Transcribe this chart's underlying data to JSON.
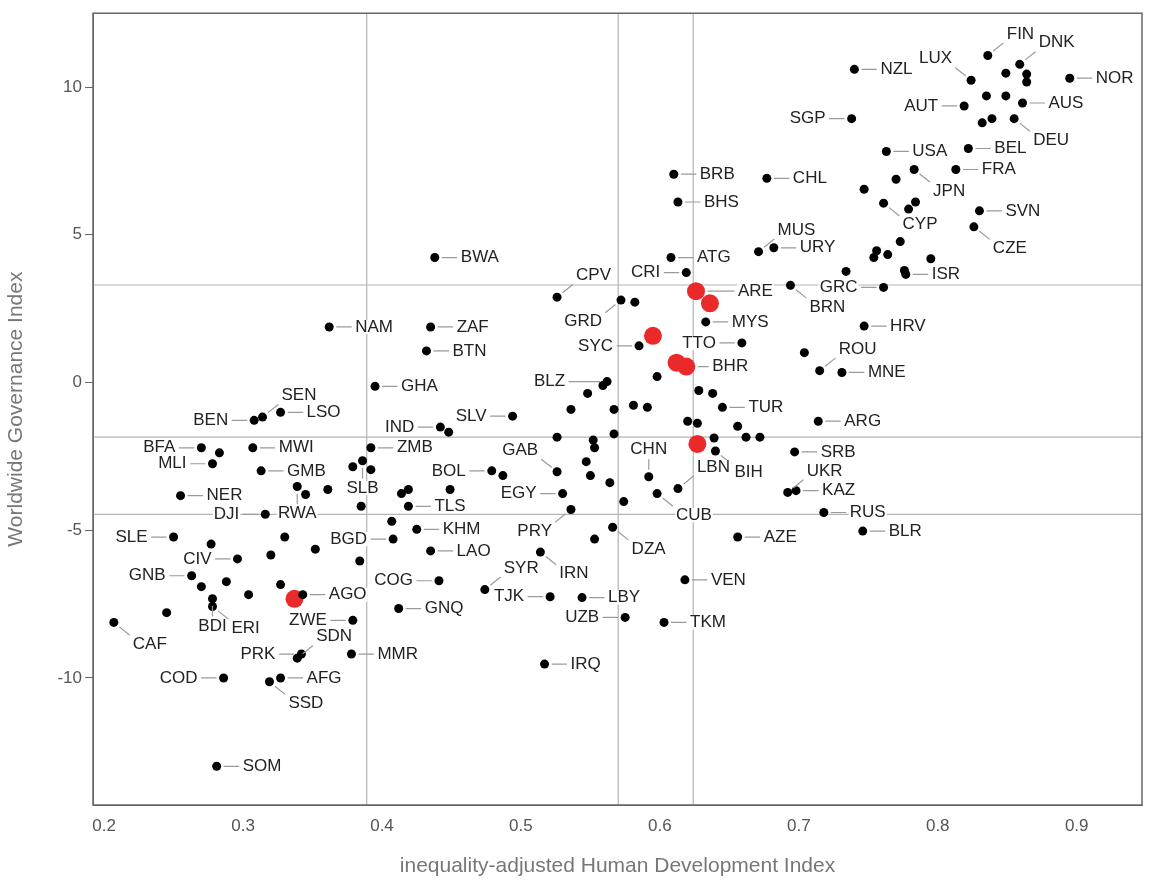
{
  "chart_data": {
    "type": "scatter",
    "xlabel": "inequality-adjusted Human Development Index",
    "ylabel": "Worldwide Governance Index",
    "xlim": [
      0.192,
      0.947
    ],
    "ylim": [
      -14.3,
      12.5
    ],
    "xticks": [
      0.2,
      0.3,
      0.4,
      0.5,
      0.6,
      0.7,
      0.8,
      0.9
    ],
    "yticks": [
      -10,
      -5,
      0,
      5,
      10
    ],
    "grid": false,
    "legend": false,
    "marker": "circle",
    "ref_lines": [
      {
        "axis": "x",
        "value": 0.389,
        "color": "#b4b4b4"
      },
      {
        "axis": "x",
        "value": 0.57,
        "color": "#b4b4b4"
      },
      {
        "axis": "x",
        "value": 0.624,
        "color": "#b4b4b4"
      },
      {
        "axis": "y",
        "value": 3.3,
        "color": "#b4b4b4"
      },
      {
        "axis": "y",
        "value": -1.85,
        "color": "#b4b4b4"
      },
      {
        "axis": "y",
        "value": -4.46,
        "color": "#b4b4b4"
      }
    ],
    "series": [
      {
        "color": "#000000",
        "x": [
          0.74,
          0.738,
          0.836,
          0.859,
          0.849,
          0.864,
          0.864,
          0.895,
          0.824,
          0.835,
          0.849,
          0.861,
          0.819,
          0.832,
          0.839,
          0.855,
          0.822,
          0.813,
          0.783,
          0.763,
          0.77,
          0.747,
          0.761,
          0.779,
          0.784,
          0.83,
          0.826,
          0.773,
          0.756,
          0.754,
          0.764,
          0.795,
          0.776,
          0.777,
          0.734,
          0.761,
          0.694,
          0.747,
          0.704,
          0.715,
          0.731,
          0.714,
          0.677,
          0.682,
          0.671,
          0.61,
          0.613,
          0.608,
          0.619,
          0.633,
          0.659,
          0.585,
          0.598,
          0.526,
          0.572,
          0.582,
          0.562,
          0.559,
          0.548,
          0.536,
          0.567,
          0.581,
          0.591,
          0.494,
          0.628,
          0.638,
          0.645,
          0.62,
          0.627,
          0.656,
          0.662,
          0.672,
          0.639,
          0.64,
          0.526,
          0.567,
          0.552,
          0.553,
          0.697,
          0.698,
          0.692,
          0.718,
          0.746,
          0.656,
          0.526,
          0.479,
          0.487,
          0.547,
          0.55,
          0.564,
          0.574,
          0.592,
          0.598,
          0.613,
          0.53,
          0.536,
          0.566,
          0.553,
          0.514,
          0.618,
          0.474,
          0.521,
          0.544,
          0.575,
          0.603,
          0.517,
          0.438,
          0.362,
          0.435,
          0.432,
          0.395,
          0.327,
          0.308,
          0.314,
          0.442,
          0.448,
          0.307,
          0.27,
          0.283,
          0.392,
          0.278,
          0.313,
          0.379,
          0.386,
          0.392,
          0.255,
          0.339,
          0.345,
          0.361,
          0.385,
          0.414,
          0.419,
          0.449,
          0.419,
          0.316,
          0.407,
          0.425,
          0.408,
          0.435,
          0.25,
          0.277,
          0.33,
          0.296,
          0.32,
          0.352,
          0.384,
          0.263,
          0.27,
          0.288,
          0.327,
          0.304,
          0.343,
          0.278,
          0.278,
          0.245,
          0.207,
          0.379,
          0.441,
          0.412,
          0.339,
          0.342,
          0.378,
          0.286,
          0.319,
          0.327,
          0.281
        ],
        "values": [
          10.6,
          8.93,
          11.07,
          10.77,
          10.47,
          10.44,
          10.17,
          10.3,
          10.23,
          9.7,
          9.7,
          9.46,
          9.36,
          8.79,
          8.93,
          8.93,
          7.92,
          7.21,
          7.21,
          7.82,
          6.88,
          6.54,
          6.07,
          5.87,
          6.11,
          5.81,
          5.27,
          4.77,
          4.46,
          4.23,
          4.33,
          4.19,
          3.79,
          3.66,
          3.76,
          3.22,
          3.29,
          1.91,
          1.01,
          0.4,
          0.34,
          -1.31,
          6.91,
          4.56,
          4.43,
          7.05,
          6.11,
          4.23,
          3.72,
          2.05,
          1.34,
          1.24,
          0.2,
          2.89,
          2.79,
          2.72,
          0.03,
          -0.1,
          -0.37,
          -0.91,
          -0.91,
          -0.77,
          -0.84,
          -1.14,
          -0.27,
          -0.37,
          -0.84,
          -1.31,
          -1.38,
          -1.48,
          -1.85,
          -1.85,
          -1.88,
          -2.32,
          -1.85,
          -1.74,
          -1.95,
          -2.21,
          -2.35,
          -3.66,
          -3.72,
          -4.4,
          -5.03,
          -5.23,
          -3.02,
          -2.99,
          -3.15,
          -2.68,
          -3.15,
          -3.39,
          -4.03,
          -3.19,
          -3.76,
          -3.59,
          -3.76,
          -4.3,
          -4.9,
          -5.3,
          -5.74,
          -6.68,
          -7.01,
          -7.25,
          -7.28,
          -7.95,
          -8.12,
          -9.53,
          4.23,
          1.88,
          1.88,
          1.07,
          -0.13,
          -1.01,
          -1.28,
          -1.17,
          -1.51,
          -1.68,
          -2.21,
          -2.21,
          -2.38,
          -2.21,
          -2.75,
          -2.99,
          -2.85,
          -2.65,
          -2.95,
          -3.83,
          -3.52,
          -3.79,
          -3.62,
          -4.19,
          -3.76,
          -3.62,
          -3.62,
          -4.19,
          -4.46,
          -4.7,
          -4.97,
          -5.3,
          -5.7,
          -5.23,
          -5.47,
          -5.23,
          -5.97,
          -5.84,
          -5.64,
          -6.04,
          -6.54,
          -6.91,
          -6.74,
          -6.84,
          -7.18,
          -7.18,
          -7.32,
          -7.58,
          -7.79,
          -8.12,
          -8.05,
          -6.71,
          -7.65,
          -9.33,
          -9.19,
          -9.19,
          -10.0,
          -10.13,
          -10.0,
          -12.99
        ]
      },
      {
        "color": "#ea2a2a",
        "x": [
          0.626,
          0.636,
          0.595,
          0.612,
          0.619,
          0.627,
          0.337
        ],
        "values": [
          3.09,
          2.68,
          1.58,
          0.67,
          0.54,
          -2.08,
          -7.32
        ]
      }
    ],
    "annotations": [
      {
        "text": "FIN",
        "x": 0.836,
        "y": 11.07
      },
      {
        "text": "DNK",
        "x": 0.859,
        "y": 10.77
      },
      {
        "text": "NZL",
        "x": 0.74,
        "y": 10.6
      },
      {
        "text": "LUX",
        "x": 0.824,
        "y": 10.23
      },
      {
        "text": "NOR",
        "x": 0.895,
        "y": 10.3
      },
      {
        "text": "AUT",
        "x": 0.819,
        "y": 9.36
      },
      {
        "text": "AUS",
        "x": 0.861,
        "y": 9.46
      },
      {
        "text": "SGP",
        "x": 0.738,
        "y": 8.93
      },
      {
        "text": "DEU",
        "x": 0.855,
        "y": 8.93
      },
      {
        "text": "JPN",
        "x": 0.783,
        "y": 7.21
      },
      {
        "text": "BRB",
        "x": 0.61,
        "y": 7.05
      },
      {
        "text": "CHL",
        "x": 0.677,
        "y": 6.91
      },
      {
        "text": "BEL",
        "x": 0.822,
        "y": 7.92
      },
      {
        "text": "USA",
        "x": 0.763,
        "y": 7.82
      },
      {
        "text": "FRA",
        "x": 0.813,
        "y": 7.21
      },
      {
        "text": "BHS",
        "x": 0.613,
        "y": 6.11
      },
      {
        "text": "CYP",
        "x": 0.761,
        "y": 6.07
      },
      {
        "text": "SVN",
        "x": 0.83,
        "y": 5.81
      },
      {
        "text": "BWA",
        "x": 0.438,
        "y": 4.23
      },
      {
        "text": "ATG",
        "x": 0.608,
        "y": 4.23
      },
      {
        "text": "URY",
        "x": 0.682,
        "y": 4.56
      },
      {
        "text": "MUS",
        "x": 0.671,
        "y": 4.43
      },
      {
        "text": "CZE",
        "x": 0.826,
        "y": 5.27
      },
      {
        "text": "CRI",
        "x": 0.619,
        "y": 3.72
      },
      {
        "text": "ARE",
        "x": 0.626,
        "y": 3.09
      },
      {
        "text": "ISR",
        "x": 0.777,
        "y": 3.66
      },
      {
        "text": "CPV",
        "x": 0.526,
        "y": 2.89
      },
      {
        "text": "BRN",
        "x": 0.694,
        "y": 3.29
      },
      {
        "text": "GRC",
        "x": 0.761,
        "y": 3.22
      },
      {
        "text": "NAM",
        "x": 0.362,
        "y": 1.88
      },
      {
        "text": "ZAF",
        "x": 0.435,
        "y": 1.88
      },
      {
        "text": "GRD",
        "x": 0.572,
        "y": 2.79
      },
      {
        "text": "MYS",
        "x": 0.633,
        "y": 2.05
      },
      {
        "text": "SYC",
        "x": 0.585,
        "y": 1.24
      },
      {
        "text": "TTO",
        "x": 0.659,
        "y": 1.34
      },
      {
        "text": "HRV",
        "x": 0.747,
        "y": 1.91
      },
      {
        "text": "BTN",
        "x": 0.432,
        "y": 1.07
      },
      {
        "text": "BLZ",
        "x": 0.562,
        "y": 0.03
      },
      {
        "text": "SLV",
        "x": 0.494,
        "y": -1.14
      },
      {
        "text": "BHR",
        "x": 0.619,
        "y": 0.54
      },
      {
        "text": "ROU",
        "x": 0.715,
        "y": 0.4
      },
      {
        "text": "GHA",
        "x": 0.395,
        "y": -0.13
      },
      {
        "text": "MNE",
        "x": 0.731,
        "y": 0.34
      },
      {
        "text": "IND",
        "x": 0.442,
        "y": -1.51
      },
      {
        "text": "BEN",
        "x": 0.308,
        "y": -1.28
      },
      {
        "text": "LSO",
        "x": 0.327,
        "y": -1.01
      },
      {
        "text": "ZMB",
        "x": 0.392,
        "y": -2.21
      },
      {
        "text": "TUR",
        "x": 0.645,
        "y": -0.84
      },
      {
        "text": "SEN",
        "x": 0.314,
        "y": -1.17
      },
      {
        "text": "MWI",
        "x": 0.307,
        "y": -2.21
      },
      {
        "text": "ARG",
        "x": 0.714,
        "y": -1.31
      },
      {
        "text": "BFA",
        "x": 0.27,
        "y": -2.21
      },
      {
        "text": "SLB",
        "x": 0.386,
        "y": -2.65
      },
      {
        "text": "CHN",
        "x": 0.592,
        "y": -3.19
      },
      {
        "text": "GAB",
        "x": 0.526,
        "y": -3.02
      },
      {
        "text": "BIH",
        "x": 0.64,
        "y": -2.32
      },
      {
        "text": "SRB",
        "x": 0.697,
        "y": -2.35
      },
      {
        "text": "GMB",
        "x": 0.313,
        "y": -2.99
      },
      {
        "text": "BOL",
        "x": 0.479,
        "y": -2.99
      },
      {
        "text": "NER",
        "x": 0.255,
        "y": -3.83
      },
      {
        "text": "MLI",
        "x": 0.278,
        "y": -2.75
      },
      {
        "text": "RWA",
        "x": 0.339,
        "y": -3.52
      },
      {
        "text": "EGY",
        "x": 0.53,
        "y": -3.76
      },
      {
        "text": "LBN",
        "x": 0.613,
        "y": -3.59
      },
      {
        "text": "KAZ",
        "x": 0.698,
        "y": -3.66
      },
      {
        "text": "DJI",
        "x": 0.316,
        "y": -4.46
      },
      {
        "text": "TLS",
        "x": 0.419,
        "y": -4.19
      },
      {
        "text": "UKR",
        "x": 0.692,
        "y": -3.72
      },
      {
        "text": "RUS",
        "x": 0.718,
        "y": -4.4
      },
      {
        "text": "SLE",
        "x": 0.25,
        "y": -5.23
      },
      {
        "text": "CIV",
        "x": 0.296,
        "y": -5.97
      },
      {
        "text": "PRY",
        "x": 0.536,
        "y": -4.3
      },
      {
        "text": "KHM",
        "x": 0.425,
        "y": -4.97
      },
      {
        "text": "CUB",
        "x": 0.598,
        "y": -3.76
      },
      {
        "text": "AZE",
        "x": 0.656,
        "y": -5.23
      },
      {
        "text": "BLR",
        "x": 0.746,
        "y": -5.03
      },
      {
        "text": "LAO",
        "x": 0.435,
        "y": -5.7
      },
      {
        "text": "DZA",
        "x": 0.566,
        "y": -4.9
      },
      {
        "text": "IRN",
        "x": 0.514,
        "y": -5.74
      },
      {
        "text": "VEN",
        "x": 0.618,
        "y": -6.68
      },
      {
        "text": "GNB",
        "x": 0.263,
        "y": -6.54
      },
      {
        "text": "BGD",
        "x": 0.408,
        "y": -5.3
      },
      {
        "text": "AGO",
        "x": 0.343,
        "y": -7.18
      },
      {
        "text": "LBY",
        "x": 0.544,
        "y": -7.28
      },
      {
        "text": "ERI",
        "x": 0.278,
        "y": -7.58
      },
      {
        "text": "ZWE",
        "x": 0.379,
        "y": -8.05
      },
      {
        "text": "SYR",
        "x": 0.474,
        "y": -7.01
      },
      {
        "text": "CAF",
        "x": 0.207,
        "y": -8.12
      },
      {
        "text": "PRK",
        "x": 0.342,
        "y": -9.19
      },
      {
        "text": "COG",
        "x": 0.441,
        "y": -6.71
      },
      {
        "text": "TJK",
        "x": 0.521,
        "y": -7.25
      },
      {
        "text": "BDI",
        "x": 0.278,
        "y": -7.32
      },
      {
        "text": "GNQ",
        "x": 0.412,
        "y": -7.65
      },
      {
        "text": "TKM",
        "x": 0.603,
        "y": -8.12
      },
      {
        "text": "UZB",
        "x": 0.575,
        "y": -7.95
      },
      {
        "text": "SDN",
        "x": 0.339,
        "y": -9.33
      },
      {
        "text": "MMR",
        "x": 0.378,
        "y": -9.19
      },
      {
        "text": "COD",
        "x": 0.286,
        "y": -10.0
      },
      {
        "text": "AFG",
        "x": 0.327,
        "y": -10.0
      },
      {
        "text": "IRQ",
        "x": 0.517,
        "y": -9.53
      },
      {
        "text": "SSD",
        "x": 0.319,
        "y": -10.13
      },
      {
        "text": "SOM",
        "x": 0.281,
        "y": -12.99
      }
    ]
  }
}
